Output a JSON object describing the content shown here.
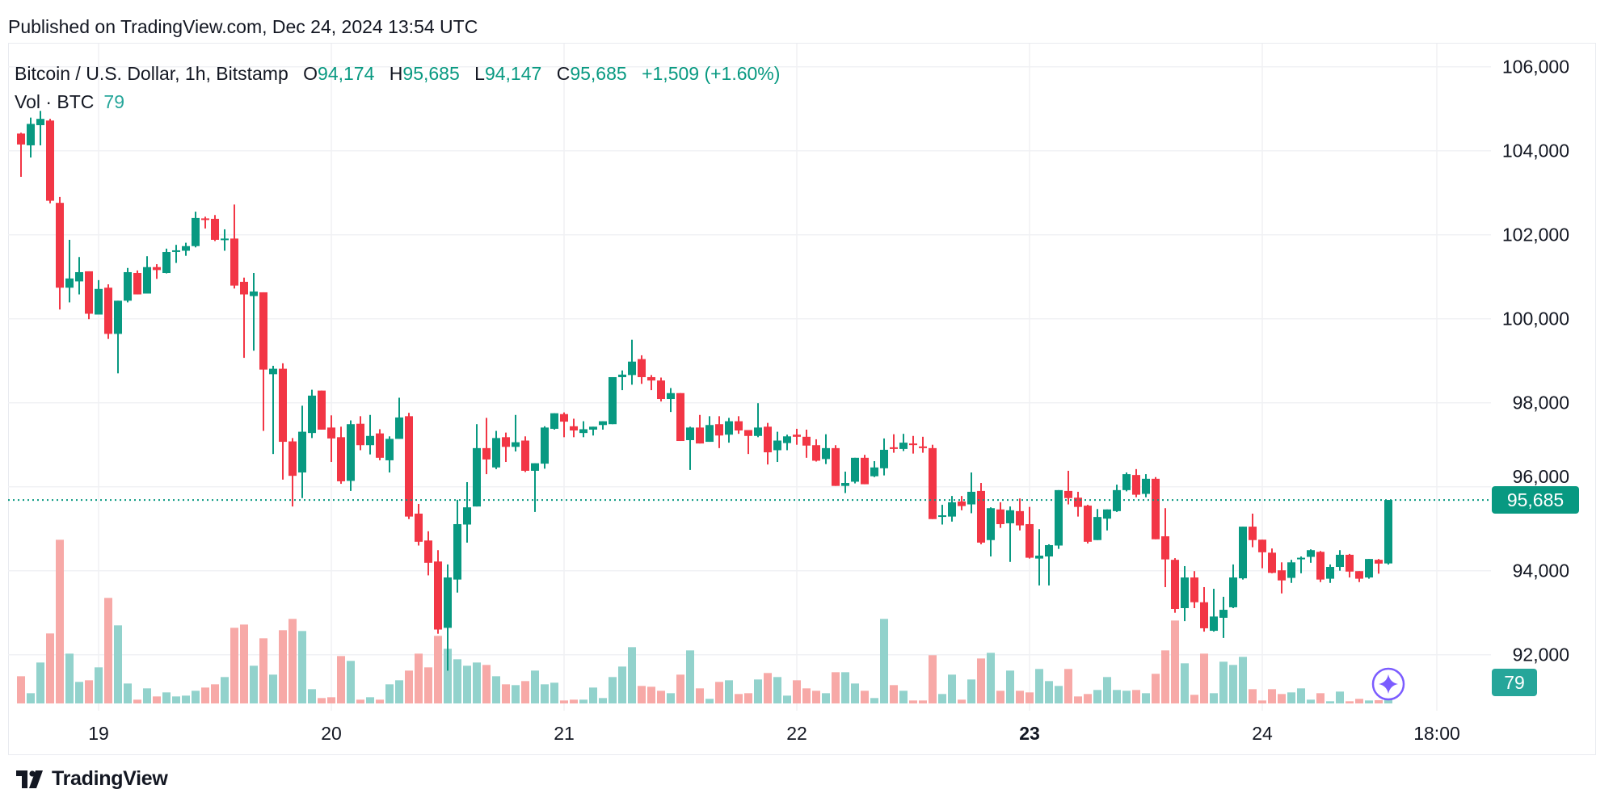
{
  "header": {
    "published": "Published on TradingView.com, Dec 24, 2024 13:54 UTC"
  },
  "legend": {
    "symbol": "Bitcoin / U.S. Dollar, 1h, Bitstamp",
    "open_label": "O",
    "open": "94,174",
    "high_label": "H",
    "high": "95,685",
    "low_label": "L",
    "low": "94,147",
    "close_label": "C",
    "close": "95,685",
    "change": "+1,509 (+1.60%)",
    "volume_label": "Vol · BTC",
    "volume": "79"
  },
  "price_tag": "95,685",
  "volume_tag": "79",
  "logo": {
    "text": "TradingView"
  },
  "colors": {
    "up": "#089981",
    "down": "#f23645",
    "volume_up": "#92d2cc",
    "volume_down": "#f7a9a7",
    "grid": "#f0f1f4",
    "ai_button": "#7b5cff"
  },
  "icons": {
    "ai_button": "sparkle-icon",
    "logo": "tradingview-logo-icon"
  },
  "chart_data": {
    "type": "candlestick",
    "interval": "1h",
    "ylim": [
      91000,
      106500
    ],
    "y_ticks": [
      {
        "value": 92000,
        "label": "92,000"
      },
      {
        "value": 94000,
        "label": "94,000"
      },
      {
        "value": 96000,
        "label": "96,000"
      },
      {
        "value": 98000,
        "label": "98,000"
      },
      {
        "value": 100000,
        "label": "100,000"
      },
      {
        "value": 102000,
        "label": "102,000"
      },
      {
        "value": 104000,
        "label": "104,000"
      },
      {
        "value": 106000,
        "label": "106,000"
      }
    ],
    "x_ticks": [
      {
        "time": "2024-12-19 00:00",
        "label": "19",
        "bold": false
      },
      {
        "time": "2024-12-20 00:00",
        "label": "20",
        "bold": false
      },
      {
        "time": "2024-12-21 00:00",
        "label": "21",
        "bold": false
      },
      {
        "time": "2024-12-22 00:00",
        "label": "22",
        "bold": false
      },
      {
        "time": "2024-12-23 00:00",
        "label": "23",
        "bold": true
      },
      {
        "time": "2024-12-24 00:00",
        "label": "24",
        "bold": false
      },
      {
        "time": "2024-12-24 18:00",
        "label": "18:00",
        "bold": false
      }
    ],
    "grid": true,
    "last_price": 95685,
    "columns": [
      "time",
      "open",
      "high",
      "low",
      "close",
      "volume"
    ],
    "candles": [
      [
        "2024-12-18 16:00",
        104410,
        104430,
        103380,
        104150,
        101
      ],
      [
        "2024-12-18 17:00",
        104130,
        104790,
        103840,
        104640,
        38
      ],
      [
        "2024-12-18 18:00",
        104610,
        104950,
        104130,
        104760,
        152
      ],
      [
        "2024-12-18 19:00",
        104720,
        104760,
        102750,
        102810,
        260
      ],
      [
        "2024-12-18 20:00",
        102760,
        102900,
        100220,
        100740,
        608
      ],
      [
        "2024-12-18 21:00",
        100740,
        101880,
        100390,
        100960,
        185
      ],
      [
        "2024-12-18 22:00",
        100890,
        101470,
        100580,
        101110,
        80
      ],
      [
        "2024-12-18 23:00",
        101130,
        101130,
        99990,
        100120,
        86
      ],
      [
        "2024-12-19 00:00",
        100100,
        100920,
        100100,
        100710,
        134
      ],
      [
        "2024-12-19 01:00",
        100740,
        100820,
        99520,
        99640,
        392
      ],
      [
        "2024-12-19 02:00",
        99640,
        100430,
        98700,
        100430,
        290
      ],
      [
        "2024-12-19 03:00",
        100430,
        101210,
        100390,
        101110,
        74
      ],
      [
        "2024-12-19 04:00",
        101090,
        101150,
        100580,
        100580,
        14
      ],
      [
        "2024-12-19 05:00",
        100600,
        101490,
        100600,
        101230,
        56
      ],
      [
        "2024-12-19 06:00",
        101230,
        101300,
        100950,
        101160,
        26
      ],
      [
        "2024-12-19 07:00",
        101090,
        101670,
        101080,
        101590,
        41
      ],
      [
        "2024-12-19 08:00",
        101610,
        101760,
        101330,
        101630,
        26
      ],
      [
        "2024-12-19 09:00",
        101620,
        101810,
        101500,
        101730,
        29
      ],
      [
        "2024-12-19 10:00",
        101730,
        102550,
        101700,
        102400,
        47
      ],
      [
        "2024-12-19 11:00",
        102390,
        102430,
        102150,
        102370,
        59
      ],
      [
        "2024-12-19 12:00",
        102380,
        102470,
        101850,
        101880,
        71
      ],
      [
        "2024-12-19 13:00",
        101890,
        102130,
        101620,
        101910,
        98
      ],
      [
        "2024-12-19 14:00",
        101910,
        102720,
        100720,
        100790,
        281
      ],
      [
        "2024-12-19 15:00",
        100880,
        100980,
        99070,
        100580,
        293
      ],
      [
        "2024-12-19 16:00",
        100540,
        101090,
        99240,
        100650,
        140
      ],
      [
        "2024-12-19 17:00",
        100630,
        100630,
        97330,
        98790,
        242
      ],
      [
        "2024-12-19 18:00",
        98680,
        98880,
        96780,
        98810,
        107
      ],
      [
        "2024-12-19 19:00",
        98810,
        98940,
        96170,
        97070,
        272
      ],
      [
        "2024-12-19 20:00",
        97080,
        97160,
        95530,
        96260,
        314
      ],
      [
        "2024-12-19 21:00",
        96340,
        97930,
        95730,
        97310,
        269
      ],
      [
        "2024-12-19 22:00",
        97280,
        98310,
        97160,
        98170,
        53
      ],
      [
        "2024-12-19 23:00",
        98290,
        98290,
        97360,
        97360,
        20
      ],
      [
        "2024-12-20 00:00",
        97410,
        97700,
        96590,
        97150,
        23
      ],
      [
        "2024-12-20 01:00",
        97180,
        97430,
        96070,
        96130,
        176
      ],
      [
        "2024-12-20 02:00",
        96140,
        97580,
        95900,
        97490,
        158
      ],
      [
        "2024-12-20 03:00",
        97500,
        97680,
        96870,
        96990,
        14
      ],
      [
        "2024-12-20 04:00",
        96990,
        97710,
        96770,
        97210,
        23
      ],
      [
        "2024-12-20 05:00",
        97270,
        97370,
        96630,
        96690,
        14
      ],
      [
        "2024-12-20 06:00",
        96630,
        97200,
        96340,
        97140,
        71
      ],
      [
        "2024-12-20 07:00",
        97140,
        98120,
        97140,
        97650,
        86
      ],
      [
        "2024-12-20 08:00",
        97680,
        97760,
        95230,
        95290,
        122
      ],
      [
        "2024-12-20 09:00",
        95360,
        95590,
        94600,
        94690,
        185
      ],
      [
        "2024-12-20 10:00",
        94720,
        94940,
        93890,
        94190,
        134
      ],
      [
        "2024-12-20 11:00",
        94220,
        94490,
        92500,
        92600,
        251
      ],
      [
        "2024-12-20 12:00",
        92640,
        94150,
        91620,
        93840,
        203
      ],
      [
        "2024-12-20 13:00",
        93790,
        95690,
        93480,
        95110,
        164
      ],
      [
        "2024-12-20 14:00",
        95100,
        96110,
        94670,
        95510,
        140
      ],
      [
        "2024-12-20 15:00",
        95530,
        97490,
        95530,
        96920,
        152
      ],
      [
        "2024-12-20 16:00",
        96920,
        97640,
        96300,
        96650,
        143
      ],
      [
        "2024-12-20 17:00",
        96460,
        97330,
        96420,
        97160,
        101
      ],
      [
        "2024-12-20 18:00",
        97180,
        97290,
        96590,
        96950,
        71
      ],
      [
        "2024-12-20 19:00",
        96950,
        97710,
        96840,
        97060,
        68
      ],
      [
        "2024-12-20 20:00",
        97100,
        97200,
        96350,
        96380,
        83
      ],
      [
        "2024-12-20 21:00",
        96380,
        96560,
        95400,
        96560,
        122
      ],
      [
        "2024-12-20 22:00",
        96550,
        97440,
        96430,
        97410,
        71
      ],
      [
        "2024-12-20 23:00",
        97380,
        97750,
        97360,
        97750,
        77
      ],
      [
        "2024-12-21 00:00",
        97730,
        97770,
        97180,
        97550,
        11
      ],
      [
        "2024-12-21 01:00",
        97440,
        97620,
        97180,
        97340,
        14
      ],
      [
        "2024-12-21 02:00",
        97280,
        97560,
        97180,
        97370,
        14
      ],
      [
        "2024-12-21 03:00",
        97360,
        97430,
        97220,
        97430,
        59
      ],
      [
        "2024-12-21 04:00",
        97470,
        97560,
        97360,
        97560,
        20
      ],
      [
        "2024-12-21 05:00",
        97490,
        98610,
        97490,
        98610,
        98
      ],
      [
        "2024-12-21 06:00",
        98610,
        98770,
        98300,
        98670,
        137
      ],
      [
        "2024-12-21 07:00",
        98660,
        99500,
        98430,
        98980,
        209
      ],
      [
        "2024-12-21 08:00",
        99040,
        99130,
        98450,
        98610,
        65
      ],
      [
        "2024-12-21 09:00",
        98610,
        98660,
        98300,
        98530,
        62
      ],
      [
        "2024-12-21 10:00",
        98530,
        98600,
        98030,
        98090,
        47
      ],
      [
        "2024-12-21 11:00",
        98090,
        98350,
        97780,
        98230,
        38
      ],
      [
        "2024-12-21 12:00",
        98230,
        98230,
        97090,
        97090,
        107
      ],
      [
        "2024-12-21 13:00",
        97110,
        97430,
        96400,
        97410,
        197
      ],
      [
        "2024-12-21 14:00",
        97410,
        97710,
        97030,
        97030,
        56
      ],
      [
        "2024-12-21 15:00",
        97070,
        97680,
        97070,
        97470,
        17
      ],
      [
        "2024-12-21 16:00",
        97490,
        97680,
        96920,
        97220,
        80
      ],
      [
        "2024-12-21 17:00",
        97240,
        97640,
        97050,
        97560,
        86
      ],
      [
        "2024-12-21 18:00",
        97560,
        97680,
        97260,
        97340,
        35
      ],
      [
        "2024-12-21 19:00",
        97350,
        97350,
        96780,
        97210,
        38
      ],
      [
        "2024-12-21 20:00",
        97210,
        97990,
        97180,
        97410,
        89
      ],
      [
        "2024-12-21 21:00",
        97430,
        97520,
        96530,
        96820,
        113
      ],
      [
        "2024-12-21 22:00",
        96870,
        97310,
        96590,
        97100,
        98
      ],
      [
        "2024-12-21 23:00",
        97040,
        97240,
        96870,
        97200,
        29
      ],
      [
        "2024-12-22 00:00",
        97240,
        97380,
        97000,
        97190,
        86
      ],
      [
        "2024-12-22 01:00",
        97190,
        97360,
        96690,
        96980,
        56
      ],
      [
        "2024-12-22 02:00",
        96990,
        97130,
        96600,
        96620,
        47
      ],
      [
        "2024-12-22 03:00",
        96660,
        97250,
        96540,
        96920,
        38
      ],
      [
        "2024-12-22 04:00",
        96920,
        96990,
        96020,
        96020,
        116
      ],
      [
        "2024-12-22 05:00",
        96020,
        96360,
        95850,
        96090,
        116
      ],
      [
        "2024-12-22 06:00",
        96120,
        96690,
        96080,
        96690,
        74
      ],
      [
        "2024-12-22 07:00",
        96690,
        96760,
        96060,
        96060,
        47
      ],
      [
        "2024-12-22 08:00",
        96250,
        96610,
        96230,
        96460,
        20
      ],
      [
        "2024-12-22 09:00",
        96440,
        97150,
        96270,
        96880,
        314
      ],
      [
        "2024-12-22 10:00",
        96940,
        97250,
        96810,
        96900,
        68
      ],
      [
        "2024-12-22 11:00",
        96900,
        97260,
        96850,
        97050,
        47
      ],
      [
        "2024-12-22 12:00",
        97030,
        97210,
        96790,
        97000,
        11
      ],
      [
        "2024-12-22 13:00",
        96960,
        97190,
        96810,
        96920,
        11
      ],
      [
        "2024-12-22 14:00",
        96920,
        97000,
        95230,
        95230,
        179
      ],
      [
        "2024-12-22 15:00",
        95300,
        95570,
        95100,
        95320,
        35
      ],
      [
        "2024-12-22 16:00",
        95290,
        95780,
        95170,
        95630,
        107
      ],
      [
        "2024-12-22 17:00",
        95650,
        95780,
        95440,
        95540,
        14
      ],
      [
        "2024-12-22 18:00",
        95580,
        96340,
        95370,
        95880,
        89
      ],
      [
        "2024-12-22 19:00",
        95900,
        96090,
        94630,
        94670,
        167
      ],
      [
        "2024-12-22 20:00",
        94730,
        95510,
        94340,
        95490,
        188
      ],
      [
        "2024-12-22 21:00",
        95460,
        95630,
        95020,
        95110,
        47
      ],
      [
        "2024-12-22 22:00",
        95130,
        95530,
        94210,
        95440,
        122
      ],
      [
        "2024-12-22 23:00",
        95420,
        95720,
        94960,
        95080,
        47
      ],
      [
        "2024-12-23 00:00",
        95110,
        95520,
        94290,
        94310,
        41
      ],
      [
        "2024-12-23 01:00",
        94290,
        94990,
        93650,
        94360,
        128
      ],
      [
        "2024-12-23 02:00",
        94340,
        94630,
        93650,
        94610,
        83
      ],
      [
        "2024-12-23 03:00",
        94600,
        95920,
        94520,
        95920,
        65
      ],
      [
        "2024-12-23 04:00",
        95900,
        96380,
        95580,
        95730,
        128
      ],
      [
        "2024-12-23 05:00",
        95740,
        95880,
        95290,
        95520,
        26
      ],
      [
        "2024-12-23 06:00",
        95550,
        95570,
        94650,
        94690,
        35
      ],
      [
        "2024-12-23 07:00",
        94730,
        95470,
        94730,
        95280,
        50
      ],
      [
        "2024-12-23 08:00",
        95240,
        95460,
        94960,
        95460,
        98
      ],
      [
        "2024-12-23 09:00",
        95420,
        96050,
        95400,
        95920,
        50
      ],
      [
        "2024-12-23 10:00",
        95920,
        96340,
        95890,
        96300,
        47
      ],
      [
        "2024-12-23 11:00",
        96280,
        96420,
        95750,
        95810,
        50
      ],
      [
        "2024-12-23 12:00",
        95830,
        96300,
        95750,
        96190,
        38
      ],
      [
        "2024-12-23 13:00",
        96190,
        96230,
        94750,
        94750,
        110
      ],
      [
        "2024-12-23 14:00",
        94820,
        95490,
        93610,
        94270,
        197
      ],
      [
        "2024-12-23 15:00",
        94260,
        94300,
        93000,
        93090,
        308
      ],
      [
        "2024-12-23 16:00",
        93110,
        94110,
        92800,
        93840,
        149
      ],
      [
        "2024-12-23 17:00",
        93840,
        93990,
        93110,
        93250,
        32
      ],
      [
        "2024-12-23 18:00",
        93250,
        93610,
        92550,
        92630,
        185
      ],
      [
        "2024-12-23 19:00",
        92570,
        93570,
        92550,
        92910,
        38
      ],
      [
        "2024-12-23 20:00",
        92880,
        93380,
        92400,
        93070,
        155
      ],
      [
        "2024-12-23 21:00",
        93130,
        94150,
        93110,
        93840,
        143
      ],
      [
        "2024-12-23 22:00",
        93820,
        95050,
        93790,
        95050,
        173
      ],
      [
        "2024-12-23 23:00",
        95050,
        95360,
        94560,
        94730,
        53
      ],
      [
        "2024-12-24 00:00",
        94740,
        94740,
        94060,
        94440,
        11
      ],
      [
        "2024-12-24 01:00",
        94430,
        94530,
        93940,
        93950,
        53
      ],
      [
        "2024-12-24 02:00",
        94010,
        94200,
        93460,
        93770,
        35
      ],
      [
        "2024-12-24 03:00",
        93830,
        94260,
        93710,
        94200,
        41
      ],
      [
        "2024-12-24 04:00",
        94280,
        94340,
        93940,
        94310,
        56
      ],
      [
        "2024-12-24 05:00",
        94330,
        94510,
        94190,
        94490,
        14
      ],
      [
        "2024-12-24 06:00",
        94450,
        94470,
        93730,
        93790,
        38
      ],
      [
        "2024-12-24 07:00",
        93810,
        94150,
        93710,
        94090,
        8
      ],
      [
        "2024-12-24 08:00",
        94090,
        94490,
        94000,
        94380,
        44
      ],
      [
        "2024-12-24 09:00",
        94380,
        94400,
        93840,
        93980,
        8
      ],
      [
        "2024-12-24 10:00",
        93990,
        93990,
        93730,
        93810,
        17
      ],
      [
        "2024-12-24 11:00",
        93840,
        94280,
        93810,
        94280,
        11
      ],
      [
        "2024-12-24 12:00",
        94260,
        94280,
        93930,
        94170,
        12
      ],
      [
        "2024-12-24 13:00",
        94174,
        95685,
        94147,
        95685,
        79
      ]
    ]
  }
}
